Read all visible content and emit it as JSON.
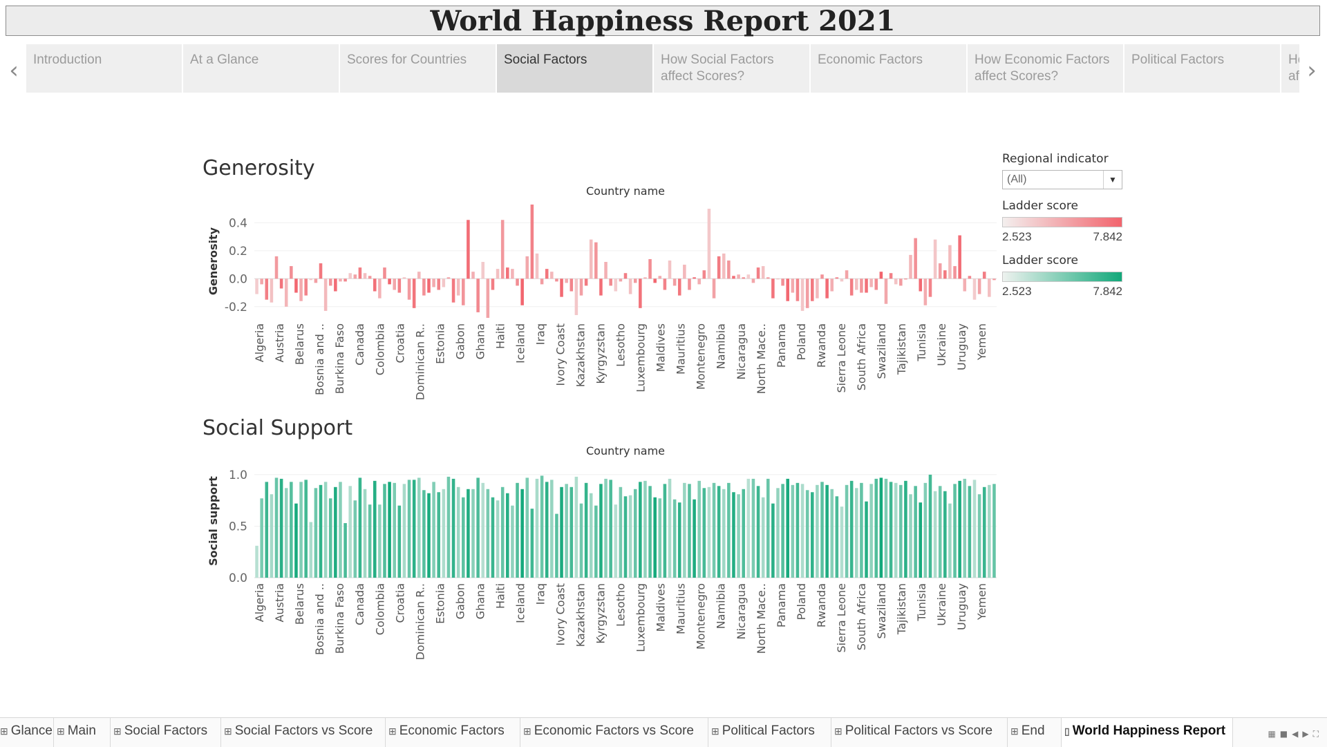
{
  "title": "World Happiness Report 2021",
  "story_nav": {
    "prev_icon": "chevron-left-icon",
    "next_icon": "chevron-right-icon",
    "tabs": [
      {
        "label": "Introduction",
        "active": false
      },
      {
        "label": "At a Glance",
        "active": false
      },
      {
        "label": "Scores for Countries",
        "active": false
      },
      {
        "label": "Social Factors",
        "active": true
      },
      {
        "label": "How Social Factors affect Scores?",
        "active": false
      },
      {
        "label": "Economic Factors",
        "active": false
      },
      {
        "label": "How Economic Factors affect Scores?",
        "active": false
      },
      {
        "label": "Political Factors",
        "active": false
      },
      {
        "label": "How Political Factors affect Scores?",
        "active": false
      }
    ]
  },
  "filters": {
    "regional_indicator": {
      "label": "Regional indicator",
      "value": "(All)"
    }
  },
  "legends": [
    {
      "label": "Ladder score",
      "min": "2.523",
      "max": "7.842",
      "from_color": "#f3efee",
      "to_color": "#f2646d"
    },
    {
      "label": "Ladder score",
      "min": "2.523",
      "max": "7.842",
      "from_color": "#eef2ef",
      "to_color": "#12a87a"
    }
  ],
  "chart_data": [
    {
      "type": "bar",
      "title": "Generosity",
      "xlabel": "Country name",
      "ylabel": "Generosity",
      "ylim": [
        -0.28,
        0.53
      ],
      "yticks": [
        -0.2,
        0.0,
        0.2,
        0.4
      ],
      "ytick_labels": [
        "-0.2",
        "0.0",
        "0.2",
        "0.4"
      ],
      "color_by": "Ladder score",
      "color_range": [
        "#f3efee",
        "#f2646d"
      ],
      "tick_labels": [
        "Algeria",
        "Austria",
        "Belarus",
        "Bosnia and ..",
        "Burkina Faso",
        "Canada",
        "Colombia",
        "Croatia",
        "Dominican R..",
        "Estonia",
        "Gabon",
        "Ghana",
        "Haiti",
        "Iceland",
        "Iraq",
        "Ivory Coast",
        "Kazakhstan",
        "Kyrgyzstan",
        "Lesotho",
        "Luxembourg",
        "Maldives",
        "Mauritius",
        "Montenegro",
        "Namibia",
        "Nicaragua",
        "North Mace..",
        "Panama",
        "Poland",
        "Rwanda",
        "Sierra Leone",
        "South Africa",
        "Swaziland",
        "Tajikistan",
        "Tunisia",
        "Ukraine",
        "Uruguay",
        "Yemen"
      ],
      "tick_every": 2,
      "values": [
        -0.11,
        -0.04,
        -0.15,
        -0.17,
        0.16,
        -0.07,
        -0.2,
        0.09,
        -0.1,
        -0.16,
        -0.12,
        -0.01,
        -0.03,
        0.11,
        -0.23,
        -0.05,
        -0.09,
        -0.02,
        -0.02,
        0.04,
        0.03,
        0.08,
        0.04,
        0.02,
        -0.09,
        -0.14,
        0.08,
        -0.04,
        -0.08,
        -0.1,
        0.01,
        -0.15,
        -0.21,
        0.05,
        -0.12,
        -0.1,
        -0.06,
        -0.08,
        -0.06,
        0.01,
        -0.17,
        -0.12,
        -0.19,
        0.42,
        0.05,
        -0.24,
        0.12,
        -0.28,
        -0.08,
        0.07,
        0.42,
        0.08,
        0.07,
        -0.05,
        -0.19,
        0.16,
        0.53,
        0.18,
        -0.04,
        0.07,
        0.05,
        -0.02,
        -0.13,
        -0.03,
        -0.09,
        -0.26,
        -0.12,
        -0.05,
        0.28,
        0.26,
        -0.12,
        0.12,
        -0.05,
        -0.09,
        -0.02,
        0.04,
        -0.11,
        -0.03,
        -0.21,
        0.01,
        0.14,
        -0.03,
        0.02,
        -0.08,
        0.13,
        -0.05,
        -0.12,
        0.1,
        -0.08,
        0.01,
        -0.04,
        0.06,
        0.5,
        -0.14,
        0.16,
        0.18,
        0.13,
        0.02,
        0.03,
        0.01,
        0.03,
        -0.03,
        0.08,
        0.09,
        0.01,
        -0.14,
        0.0,
        -0.05,
        -0.16,
        -0.1,
        -0.16,
        -0.23,
        -0.21,
        -0.16,
        -0.14,
        0.03,
        -0.14,
        -0.09,
        0.01,
        -0.02,
        0.06,
        -0.12,
        -0.08,
        -0.1,
        -0.1,
        -0.06,
        -0.08,
        0.05,
        -0.18,
        0.04,
        -0.04,
        -0.05,
        0.0,
        0.17,
        0.29,
        -0.09,
        -0.19,
        -0.13,
        0.28,
        0.11,
        0.06,
        0.24,
        0.09,
        0.31,
        -0.09,
        0.02,
        -0.15,
        -0.11,
        0.05,
        -0.13,
        -0.01
      ]
    },
    {
      "type": "bar",
      "title": "Social Support",
      "xlabel": "Country name",
      "ylabel": "Social support",
      "ylim": [
        0,
        1.1
      ],
      "yticks": [
        0.0,
        0.5,
        1.0
      ],
      "ytick_labels": [
        "0.0",
        "0.5",
        "1.0"
      ],
      "color_by": "Ladder score",
      "color_range": [
        "#eef2ef",
        "#12a87a"
      ],
      "tick_labels": [
        "Algeria",
        "Austria",
        "Belarus",
        "Bosnia and ..",
        "Burkina Faso",
        "Canada",
        "Colombia",
        "Croatia",
        "Dominican R..",
        "Estonia",
        "Gabon",
        "Ghana",
        "Haiti",
        "Iceland",
        "Iraq",
        "Ivory Coast",
        "Kazakhstan",
        "Kyrgyzstan",
        "Lesotho",
        "Luxembourg",
        "Maldives",
        "Mauritius",
        "Montenegro",
        "Namibia",
        "Nicaragua",
        "North Mace..",
        "Panama",
        "Poland",
        "Rwanda",
        "Sierra Leone",
        "South Africa",
        "Swaziland",
        "Tajikistan",
        "Tunisia",
        "Ukraine",
        "Uruguay",
        "Yemen"
      ],
      "tick_every": 2,
      "values": [
        0.31,
        0.77,
        0.93,
        0.81,
        0.97,
        0.96,
        0.87,
        0.93,
        0.72,
        0.93,
        0.95,
        0.54,
        0.87,
        0.9,
        0.93,
        0.77,
        0.88,
        0.93,
        0.53,
        0.89,
        0.75,
        0.97,
        0.86,
        0.71,
        0.94,
        0.71,
        0.91,
        0.93,
        0.92,
        0.7,
        0.91,
        0.95,
        0.95,
        0.97,
        0.85,
        0.82,
        0.93,
        0.83,
        0.86,
        0.98,
        0.96,
        0.88,
        0.78,
        0.86,
        0.86,
        0.97,
        0.92,
        0.86,
        0.78,
        0.75,
        0.88,
        0.82,
        0.7,
        0.92,
        0.86,
        0.97,
        0.67,
        0.96,
        0.99,
        0.93,
        0.95,
        0.62,
        0.88,
        0.91,
        0.88,
        0.98,
        0.72,
        0.92,
        0.82,
        0.7,
        0.91,
        0.96,
        0.95,
        0.71,
        0.88,
        0.79,
        0.8,
        0.86,
        0.93,
        0.94,
        0.89,
        0.78,
        0.77,
        0.91,
        0.96,
        0.76,
        0.73,
        0.92,
        0.91,
        0.76,
        0.94,
        0.87,
        0.88,
        0.92,
        0.89,
        0.86,
        0.92,
        0.83,
        0.81,
        0.86,
        0.96,
        0.96,
        0.89,
        0.78,
        0.96,
        0.72,
        0.87,
        0.91,
        0.96,
        0.9,
        0.92,
        0.91,
        0.85,
        0.83,
        0.9,
        0.93,
        0.9,
        0.86,
        0.79,
        0.69,
        0.9,
        0.94,
        0.87,
        0.92,
        0.74,
        0.91,
        0.96,
        0.97,
        0.96,
        0.93,
        0.92,
        0.9,
        0.94,
        0.81,
        0.89,
        0.73,
        0.92,
        1.0,
        0.84,
        0.89,
        0.84,
        0.72,
        0.91,
        0.94,
        0.96,
        0.89,
        0.95,
        0.81,
        0.88,
        0.9,
        0.91
      ]
    }
  ],
  "sheet_tabs": [
    {
      "label": "Glance",
      "icon": "grid-icon",
      "active": false
    },
    {
      "label": "Main",
      "icon": "grid-icon",
      "active": false
    },
    {
      "label": "Social Factors",
      "icon": "grid-icon",
      "active": false
    },
    {
      "label": "Social Factors vs Score",
      "icon": "grid-icon",
      "active": false
    },
    {
      "label": "Economic Factors",
      "icon": "grid-icon",
      "active": false
    },
    {
      "label": "Economic Factors vs Score",
      "icon": "grid-icon",
      "active": false
    },
    {
      "label": "Political Factors",
      "icon": "grid-icon",
      "active": false
    },
    {
      "label": "Political Factors vs Score",
      "icon": "grid-icon",
      "active": false
    },
    {
      "label": "End",
      "icon": "grid-icon",
      "active": false
    },
    {
      "label": "World Happiness Report",
      "icon": "story-icon",
      "active": true
    }
  ]
}
